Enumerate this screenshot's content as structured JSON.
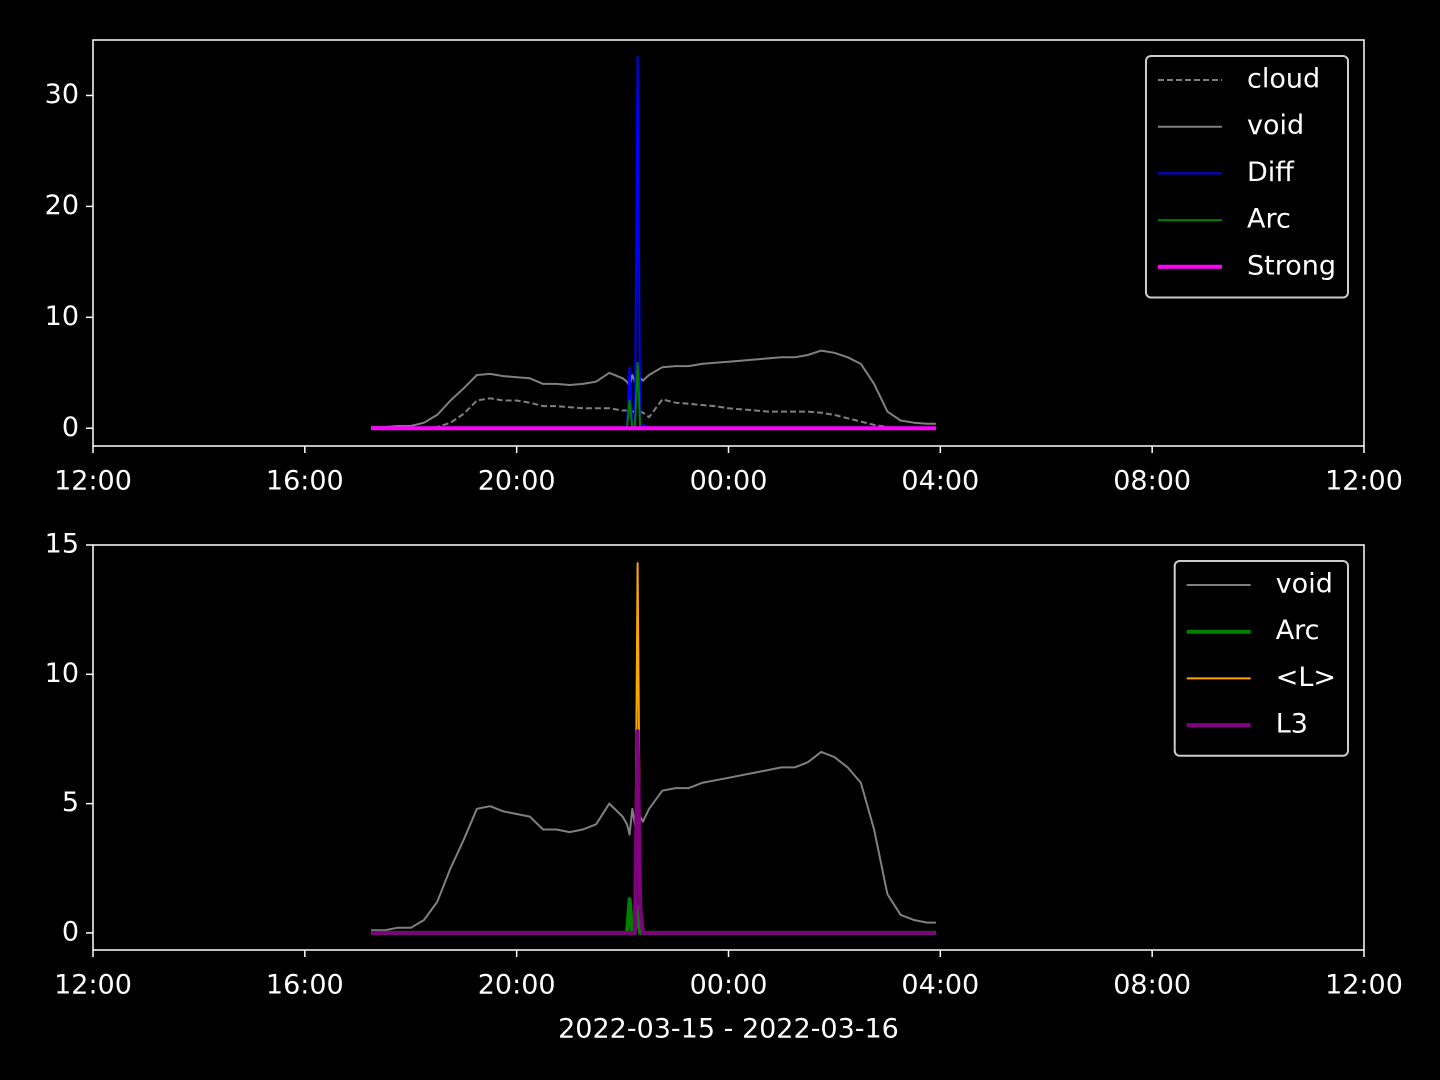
{
  "chart_data": [
    {
      "type": "line",
      "legend": "upper right",
      "x": [
        "2022-03-15T17:15",
        "2022-03-15T17:30",
        "2022-03-15T17:45",
        "2022-03-15T18:00",
        "2022-03-15T18:15",
        "2022-03-15T18:30",
        "2022-03-15T18:45",
        "2022-03-15T19:00",
        "2022-03-15T19:15",
        "2022-03-15T19:30",
        "2022-03-15T19:45",
        "2022-03-15T20:00",
        "2022-03-15T20:15",
        "2022-03-15T20:30",
        "2022-03-15T20:45",
        "2022-03-15T21:00",
        "2022-03-15T21:15",
        "2022-03-15T21:30",
        "2022-03-15T21:45",
        "2022-03-15T22:00",
        "2022-03-15T22:05",
        "2022-03-15T22:08",
        "2022-03-15T22:11",
        "2022-03-15T22:14",
        "2022-03-15T22:17",
        "2022-03-15T22:20",
        "2022-03-15T22:23",
        "2022-03-15T22:30",
        "2022-03-15T22:45",
        "2022-03-15T23:00",
        "2022-03-15T23:15",
        "2022-03-15T23:30",
        "2022-03-15T23:45",
        "2022-03-16T00:00",
        "2022-03-16T00:15",
        "2022-03-16T00:30",
        "2022-03-16T00:45",
        "2022-03-16T01:00",
        "2022-03-16T01:15",
        "2022-03-16T01:30",
        "2022-03-16T01:45",
        "2022-03-16T02:00",
        "2022-03-16T02:15",
        "2022-03-16T02:30",
        "2022-03-16T02:45",
        "2022-03-16T03:00",
        "2022-03-16T03:15",
        "2022-03-16T03:30",
        "2022-03-16T03:45",
        "2022-03-16T03:55"
      ],
      "xlim": [
        "2022-03-15T12:00",
        "2022-03-16T12:00"
      ],
      "xticks": [
        {
          "value": "2022-03-15T12:00",
          "label": "12:00"
        },
        {
          "value": "2022-03-15T16:00",
          "label": "16:00"
        },
        {
          "value": "2022-03-15T20:00",
          "label": "20:00"
        },
        {
          "value": "2022-03-16T00:00",
          "label": "00:00"
        },
        {
          "value": "2022-03-16T04:00",
          "label": "04:00"
        },
        {
          "value": "2022-03-16T08:00",
          "label": "08:00"
        },
        {
          "value": "2022-03-16T12:00",
          "label": "12:00"
        }
      ],
      "ylim": [
        -1.6,
        35
      ],
      "yticks": [
        0,
        10,
        20,
        30
      ],
      "series": [
        {
          "name": "cloud",
          "color": "#808080",
          "linestyle": "dashed",
          "linewidth": 2,
          "values": [
            0,
            0,
            0,
            0,
            0,
            0.1,
            0.5,
            1.3,
            2.5,
            2.7,
            2.5,
            2.5,
            2.3,
            2.0,
            2.0,
            1.9,
            1.8,
            1.8,
            1.8,
            1.6,
            1.6,
            1.5,
            1.5,
            1.5,
            1.5,
            1.5,
            1.4,
            1.0,
            2.6,
            2.3,
            2.2,
            2.1,
            2.0,
            1.8,
            1.7,
            1.6,
            1.5,
            1.5,
            1.5,
            1.5,
            1.4,
            1.2,
            0.9,
            0.6,
            0.3,
            0.1,
            0,
            0,
            0,
            0
          ]
        },
        {
          "name": "void",
          "color": "#808080",
          "linewidth": 2,
          "values": [
            0.1,
            0.1,
            0.2,
            0.2,
            0.5,
            1.2,
            2.5,
            3.6,
            4.8,
            4.9,
            4.7,
            4.6,
            4.5,
            4.0,
            4.0,
            3.9,
            4.0,
            4.2,
            5.0,
            4.5,
            4.2,
            3.8,
            4.8,
            4.2,
            4.0,
            4.5,
            4.3,
            4.8,
            5.5,
            5.6,
            5.6,
            5.8,
            5.9,
            6.0,
            6.1,
            6.2,
            6.3,
            6.4,
            6.4,
            6.6,
            7.0,
            6.8,
            6.4,
            5.8,
            4.0,
            1.5,
            0.7,
            0.5,
            0.4,
            0.4
          ]
        },
        {
          "name": "Diff",
          "color": "#0000ff",
          "linewidth": 2,
          "values": [
            0,
            0,
            0,
            0,
            0,
            0,
            0,
            0,
            0,
            0,
            0,
            0,
            0,
            0,
            0,
            0,
            0,
            0,
            0,
            0,
            0,
            5.5,
            0,
            0.5,
            33.5,
            0.5,
            0.3,
            0,
            0,
            0,
            0,
            0,
            0,
            0,
            0,
            0,
            0,
            0,
            0,
            0,
            0,
            0,
            0,
            0,
            0,
            0,
            0,
            0,
            0,
            0
          ]
        },
        {
          "name": "Arc",
          "color": "#008000",
          "linewidth": 2,
          "values": [
            0,
            0,
            0,
            0,
            0,
            0,
            0,
            0,
            0,
            0,
            0,
            0,
            0,
            0,
            0,
            0,
            0,
            0,
            0,
            0,
            0,
            2.5,
            0,
            0,
            5.9,
            0,
            0,
            0,
            0,
            0,
            0,
            0,
            0,
            0,
            0,
            0,
            0,
            0,
            0,
            0,
            0,
            0,
            0,
            0,
            0,
            0,
            0,
            0,
            0,
            0
          ]
        },
        {
          "name": "Strong",
          "color": "#ff00ff",
          "linewidth": 4,
          "values": [
            0,
            0,
            0,
            0,
            0,
            0,
            0,
            0,
            0,
            0,
            0,
            0,
            0,
            0,
            0,
            0,
            0,
            0,
            0,
            0,
            0,
            0,
            0,
            0,
            0,
            0,
            0,
            0,
            0,
            0,
            0,
            0,
            0,
            0,
            0,
            0,
            0,
            0,
            0,
            0,
            0,
            0,
            0,
            0,
            0,
            0,
            0,
            0,
            0,
            0
          ]
        }
      ]
    },
    {
      "type": "line",
      "legend": "upper right",
      "xlabel": "2022-03-15 - 2022-03-16",
      "x": [
        "2022-03-15T17:15",
        "2022-03-15T17:30",
        "2022-03-15T17:45",
        "2022-03-15T18:00",
        "2022-03-15T18:15",
        "2022-03-15T18:30",
        "2022-03-15T18:45",
        "2022-03-15T19:00",
        "2022-03-15T19:15",
        "2022-03-15T19:30",
        "2022-03-15T19:45",
        "2022-03-15T20:00",
        "2022-03-15T20:15",
        "2022-03-15T20:30",
        "2022-03-15T20:45",
        "2022-03-15T21:00",
        "2022-03-15T21:15",
        "2022-03-15T21:30",
        "2022-03-15T21:45",
        "2022-03-15T22:00",
        "2022-03-15T22:05",
        "2022-03-15T22:08",
        "2022-03-15T22:11",
        "2022-03-15T22:14",
        "2022-03-15T22:17",
        "2022-03-15T22:20",
        "2022-03-15T22:23",
        "2022-03-15T22:30",
        "2022-03-15T22:45",
        "2022-03-15T23:00",
        "2022-03-15T23:15",
        "2022-03-15T23:30",
        "2022-03-15T23:45",
        "2022-03-16T00:00",
        "2022-03-16T00:15",
        "2022-03-16T00:30",
        "2022-03-16T00:45",
        "2022-03-16T01:00",
        "2022-03-16T01:15",
        "2022-03-16T01:30",
        "2022-03-16T01:45",
        "2022-03-16T02:00",
        "2022-03-16T02:15",
        "2022-03-16T02:30",
        "2022-03-16T02:45",
        "2022-03-16T03:00",
        "2022-03-16T03:15",
        "2022-03-16T03:30",
        "2022-03-16T03:45",
        "2022-03-16T03:55"
      ],
      "xlim": [
        "2022-03-15T12:00",
        "2022-03-16T12:00"
      ],
      "xticks": [
        {
          "value": "2022-03-15T12:00",
          "label": "12:00"
        },
        {
          "value": "2022-03-15T16:00",
          "label": "16:00"
        },
        {
          "value": "2022-03-15T20:00",
          "label": "20:00"
        },
        {
          "value": "2022-03-16T00:00",
          "label": "00:00"
        },
        {
          "value": "2022-03-16T04:00",
          "label": "04:00"
        },
        {
          "value": "2022-03-16T08:00",
          "label": "08:00"
        },
        {
          "value": "2022-03-16T12:00",
          "label": "12:00"
        }
      ],
      "ylim": [
        -0.66,
        15
      ],
      "yticks": [
        0,
        5,
        10,
        15
      ],
      "series": [
        {
          "name": "void",
          "color": "#808080",
          "linewidth": 2,
          "values": [
            0.1,
            0.1,
            0.2,
            0.2,
            0.5,
            1.2,
            2.5,
            3.6,
            4.8,
            4.9,
            4.7,
            4.6,
            4.5,
            4.0,
            4.0,
            3.9,
            4.0,
            4.2,
            5.0,
            4.5,
            4.2,
            3.8,
            4.8,
            4.2,
            4.0,
            4.5,
            4.3,
            4.8,
            5.5,
            5.6,
            5.6,
            5.8,
            5.9,
            6.0,
            6.1,
            6.2,
            6.3,
            6.4,
            6.4,
            6.6,
            7.0,
            6.8,
            6.4,
            5.8,
            4.0,
            1.5,
            0.7,
            0.5,
            0.4,
            0.4
          ]
        },
        {
          "name": "Arc",
          "color": "#008000",
          "linewidth": 4,
          "values": [
            0,
            0,
            0,
            0,
            0,
            0,
            0,
            0,
            0,
            0,
            0,
            0,
            0,
            0,
            0,
            0,
            0,
            0,
            0,
            0,
            0,
            1.3,
            0,
            0,
            1.0,
            0,
            0,
            0,
            0,
            0,
            0,
            0,
            0,
            0,
            0,
            0,
            0,
            0,
            0,
            0,
            0,
            0,
            0,
            0,
            0,
            0,
            0,
            0,
            0,
            0
          ]
        },
        {
          "name": "<L>",
          "color": "#ffa500",
          "linewidth": 2,
          "values": [
            0,
            0,
            0,
            0,
            0,
            0,
            0,
            0,
            0,
            0,
            0,
            0,
            0,
            0,
            0,
            0,
            0,
            0,
            0,
            0,
            0,
            0,
            0,
            0,
            14.3,
            1.5,
            0,
            0,
            0,
            0,
            0,
            0,
            0,
            0,
            0,
            0,
            0,
            0,
            0,
            0,
            0,
            0,
            0,
            0,
            0,
            0,
            0,
            0,
            0,
            0
          ]
        },
        {
          "name": "L3",
          "color": "#800080",
          "linewidth": 4,
          "values": [
            0,
            0,
            0,
            0,
            0,
            0,
            0,
            0,
            0,
            0,
            0,
            0,
            0,
            0,
            0,
            0,
            0,
            0,
            0,
            0,
            0,
            0,
            0,
            0,
            7.8,
            1.0,
            0,
            0,
            0,
            0,
            0,
            0,
            0,
            0,
            0,
            0,
            0,
            0,
            0,
            0,
            0,
            0,
            0,
            0,
            0,
            0,
            0,
            0,
            0,
            0
          ]
        }
      ]
    }
  ]
}
